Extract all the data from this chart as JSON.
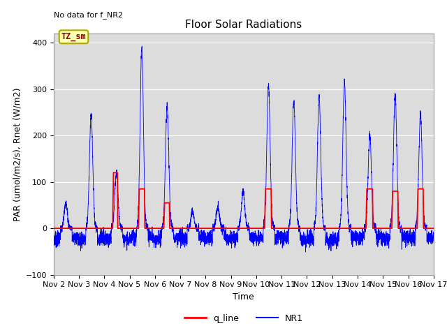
{
  "title": "Floor Solar Radiations",
  "xlabel": "Time",
  "ylabel": "PAR (umol/m2/s), Rnet (W/m2)",
  "annotation_text": "No data for f_NR2",
  "legend_label_text": "TZ_sm",
  "ylim": [
    -100,
    420
  ],
  "x_tick_labels": [
    "Nov 2",
    "Nov 3",
    "Nov 4",
    "Nov 5",
    "Nov 6",
    "Nov 7",
    "Nov 8",
    "Nov 9",
    "Nov 10",
    "Nov 11",
    "Nov 12",
    "Nov 13",
    "Nov 14",
    "Nov 15",
    "Nov 16",
    "Nov 17"
  ],
  "nr1_color": "#0000FF",
  "q_line_color": "#FF0000",
  "background_color": "#DCDCDC",
  "legend_box_facecolor": "#FFFFB0",
  "legend_box_edgecolor": "#AAAA00",
  "title_fontsize": 11,
  "axis_fontsize": 8,
  "label_fontsize": 9
}
